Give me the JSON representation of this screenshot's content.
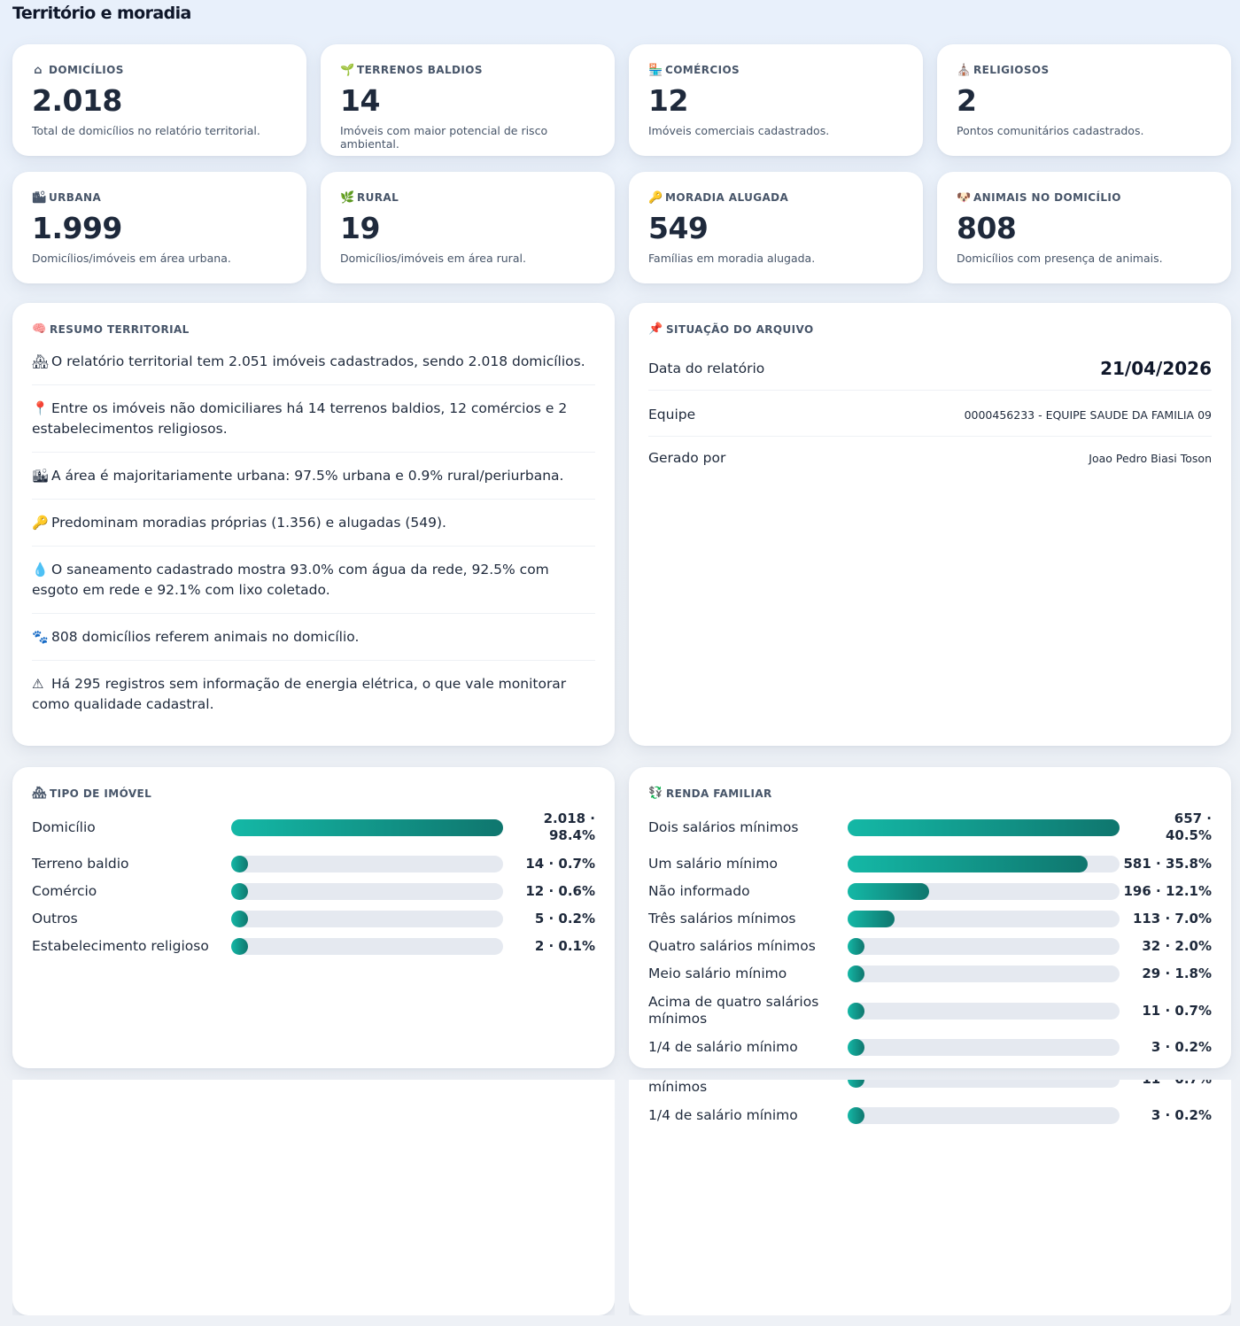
{
  "page": {
    "title": "Território e moradia"
  },
  "kpis": [
    {
      "icon": "house-icon",
      "glyph": "⌂",
      "label": "DOMICÍLIOS",
      "value": "2.018",
      "desc": "Total de domicílios no relatório territorial."
    },
    {
      "icon": "seedling-icon",
      "glyph": "🌱",
      "label": "TERRENOS BALDIOS",
      "value": "14",
      "desc": "Imóveis com maior potencial de risco ambiental."
    },
    {
      "icon": "store-icon",
      "glyph": "🏪",
      "label": "COMÉRCIOS",
      "value": "12",
      "desc": "Imóveis comerciais cadastrados."
    },
    {
      "icon": "church-icon",
      "glyph": "⛪",
      "label": "RELIGIOSOS",
      "value": "2",
      "desc": "Pontos comunitários cadastrados."
    },
    {
      "icon": "city-icon",
      "glyph": "🏙",
      "label": "URBANA",
      "value": "1.999",
      "desc": "Domicílios/imóveis em área urbana."
    },
    {
      "icon": "plant-icon",
      "glyph": "🌿",
      "label": "RURAL",
      "value": "19",
      "desc": "Domicílios/imóveis em área rural."
    },
    {
      "icon": "key-icon",
      "glyph": "🔑",
      "label": "MORADIA ALUGADA",
      "value": "549",
      "desc": "Famílias em moradia alugada."
    },
    {
      "icon": "pet-icon",
      "glyph": "🐶",
      "label": "ANIMAIS NO DOMICÍLIO",
      "value": "808",
      "desc": "Domicílios com presença de animais."
    }
  ],
  "summary": {
    "icon": "brain-icon",
    "title": "RESUMO TERRITORIAL",
    "items": [
      {
        "icon": "houses-icon",
        "glyph": "🏘",
        "text": "O relatório territorial tem 2.051 imóveis cadastrados, sendo 2.018 domicílios."
      },
      {
        "icon": "pin-icon",
        "glyph": "📍",
        "text": "Entre os imóveis não domiciliares há 14 terrenos baldios, 12 comércios e 2 estabelecimentos religiosos."
      },
      {
        "icon": "city-icon",
        "glyph": "🏙",
        "text": "A área é majoritariamente urbana: 97.5% urbana e 0.9% rural/periurbana."
      },
      {
        "icon": "key-icon",
        "glyph": "🔑",
        "text": "Predominam moradias próprias (1.356) e alugadas (549)."
      },
      {
        "icon": "droplet-icon",
        "glyph": "💧",
        "text": "O saneamento cadastrado mostra 93.0% com água da rede, 92.5% com esgoto em rede e 92.1% com lixo coletado."
      },
      {
        "icon": "paw-icon",
        "glyph": "🐾",
        "text": "808 domicílios referem animais no domicílio."
      },
      {
        "icon": "warning-icon",
        "glyph": "⚠",
        "text": "Há 295 registros sem informação de energia elétrica, o que vale monitorar como qualidade cadastral."
      }
    ]
  },
  "archive": {
    "icon": "pushpin-icon",
    "title": "SITUAÇÃO DO ARQUIVO",
    "rows": [
      {
        "label": "Data do relatório",
        "value": "21/04/2026"
      },
      {
        "label": "Equipe",
        "value": "0000456233 - EQUIPE SAUDE DA FAMILIA 09"
      },
      {
        "label": "Gerado por",
        "value": "Joao Pedro Biasi Toson"
      }
    ]
  },
  "tipo_imovel": {
    "icon": "houses-icon",
    "title": "TIPO DE IMÓVEL",
    "rows": [
      {
        "label": "Domicílio",
        "value": "2.018 · 98.4%",
        "pct": 98.4
      },
      {
        "label": "Terreno baldio",
        "value": "14 · 0.7%",
        "pct": 0.7
      },
      {
        "label": "Comércio",
        "value": "12 · 0.6%",
        "pct": 0.6
      },
      {
        "label": "Outros",
        "value": "5 · 0.2%",
        "pct": 0.2
      },
      {
        "label": "Estabelecimento religioso",
        "value": "2 · 0.1%",
        "pct": 0.1
      }
    ]
  },
  "renda_familiar": {
    "icon": "money-icon",
    "title": "RENDA FAMILIAR",
    "rows": [
      {
        "label": "Dois salários mínimos",
        "value": "657 · 40.5%",
        "pct": 40.5
      },
      {
        "label": "Um salário mínimo",
        "value": "581 · 35.8%",
        "pct": 35.8
      },
      {
        "label": "Não informado",
        "value": "196 · 12.1%",
        "pct": 12.1
      },
      {
        "label": "Três salários mínimos",
        "value": "113 · 7.0%",
        "pct": 7.0
      },
      {
        "label": "Quatro salários mínimos",
        "value": "32 · 2.0%",
        "pct": 2.0
      },
      {
        "label": "Meio salário mínimo",
        "value": "29 · 1.8%",
        "pct": 1.8
      },
      {
        "label": "Acima de quatro salários mínimos",
        "value": "11 · 0.7%",
        "pct": 0.7
      },
      {
        "label": "1/4 de salário mínimo",
        "value": "3 · 0.2%",
        "pct": 0.2
      }
    ]
  },
  "colors": {
    "bar_start": "#14b8a6",
    "bar_end": "#0f766e",
    "track": "#e5e9f0"
  }
}
